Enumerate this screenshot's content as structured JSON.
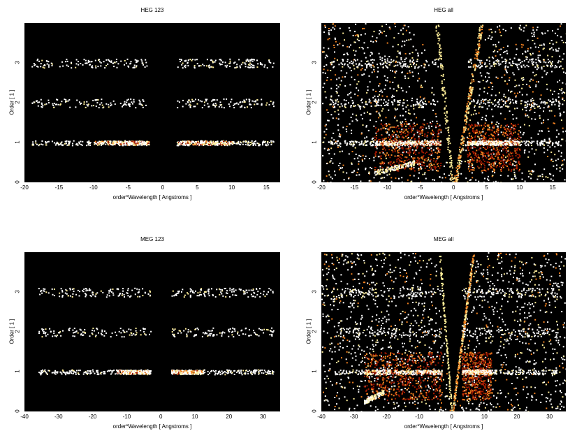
{
  "chart_data": [
    {
      "type": "heatmap",
      "title": "HEG 123",
      "xlabel": "order*Wavelength [ Angstroms ]",
      "ylabel": "Order [ 1 ]",
      "xlim": [
        -20,
        17
      ],
      "ylim": [
        0,
        4
      ],
      "xticks": [
        -20,
        -15,
        -10,
        -5,
        0,
        5,
        10,
        15
      ],
      "yticks": [
        0,
        1,
        2,
        3
      ],
      "band_ranges": [
        [
          -19,
          -2
        ],
        [
          2,
          16
        ]
      ],
      "bright_ranges": [
        [
          -10,
          -2
        ],
        [
          2,
          10
        ]
      ],
      "wedges": false
    },
    {
      "type": "heatmap",
      "title": "HEG all",
      "xlabel": "order*Wavelength [ Angstroms ]",
      "ylabel": "Order [ 1 ]",
      "xlim": [
        -20,
        17
      ],
      "ylim": [
        0,
        4
      ],
      "xticks": [
        -20,
        -15,
        -10,
        -5,
        0,
        5,
        10,
        15
      ],
      "yticks": [
        0,
        1,
        2,
        3
      ],
      "band_ranges": [
        [
          -19,
          -2
        ],
        [
          2,
          16
        ]
      ],
      "bright_ranges": [
        [
          -12,
          -2
        ],
        [
          2,
          10
        ]
      ],
      "wedges": true
    },
    {
      "type": "heatmap",
      "title": "MEG 123",
      "xlabel": "order*Wavelength [ Angstroms ]",
      "ylabel": "Order [ 1 ]",
      "xlim": [
        -40,
        35
      ],
      "ylim": [
        0,
        4
      ],
      "xticks": [
        -40,
        -30,
        -20,
        -10,
        0,
        10,
        20,
        30
      ],
      "yticks": [
        0,
        1,
        2,
        3
      ],
      "band_ranges": [
        [
          -36,
          -3
        ],
        [
          3,
          33
        ]
      ],
      "bright_ranges": [
        [
          -13,
          -3
        ],
        [
          3,
          12
        ]
      ],
      "wedges": false
    },
    {
      "type": "heatmap",
      "title": "MEG all",
      "xlabel": "order*Wavelength [ Angstroms ]",
      "ylabel": "Order [ 1 ]",
      "xlim": [
        -40,
        35
      ],
      "ylim": [
        0,
        4
      ],
      "xticks": [
        -40,
        -30,
        -20,
        -10,
        0,
        10,
        20,
        30
      ],
      "yticks": [
        0,
        1,
        2,
        3
      ],
      "band_ranges": [
        [
          -36,
          -3
        ],
        [
          3,
          33
        ]
      ],
      "bright_ranges": [
        [
          -27,
          -3
        ],
        [
          3,
          12
        ]
      ],
      "wedges": true
    }
  ],
  "colors": {
    "background": "#000000",
    "hot_white": "#ffffff",
    "hot_yellow": "#ffee99",
    "hot_orange": "#f08020",
    "hot_red": "#a01800"
  }
}
